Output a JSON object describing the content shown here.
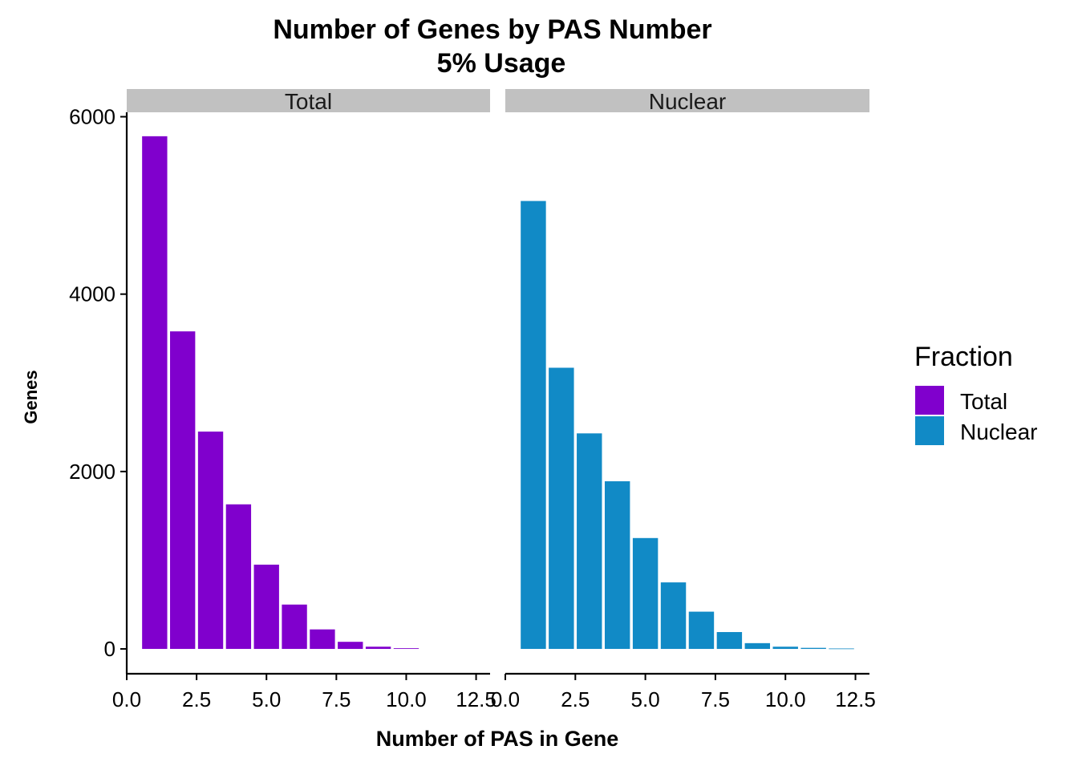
{
  "chart_data": {
    "type": "bar",
    "title": "Number of Genes by PAS Number\n5% Usage",
    "title_lines": [
      "Number of Genes by PAS Number",
      "5% Usage"
    ],
    "xlabel": "Number of PAS in Gene",
    "ylabel": "Genes",
    "xlim": [
      0,
      13
    ],
    "ylim": [
      -280,
      6050
    ],
    "x_ticks": [
      0,
      2.5,
      5,
      7.5,
      10,
      12.5
    ],
    "x_tick_labels": [
      "0.0",
      "2.5",
      "5.0",
      "7.5",
      "10.0",
      "12.5"
    ],
    "y_ticks": [
      0,
      2000,
      4000,
      6000
    ],
    "y_tick_labels": [
      "0",
      "2000",
      "4000",
      "6000"
    ],
    "grid": false,
    "legend_placement": "right",
    "legend_title": "Fraction",
    "bar_width": 0.9,
    "facets": [
      {
        "name": "Total",
        "color": "#8000cd",
        "x": [
          1,
          2,
          3,
          4,
          5,
          6,
          7,
          8,
          9,
          10
        ],
        "values": [
          5780,
          3580,
          2450,
          1630,
          950,
          500,
          220,
          80,
          25,
          8
        ]
      },
      {
        "name": "Nuclear",
        "color": "#118ac6",
        "x": [
          1,
          2,
          3,
          4,
          5,
          6,
          7,
          8,
          9,
          10,
          11,
          12
        ],
        "values": [
          5050,
          3170,
          2430,
          1890,
          1250,
          750,
          420,
          190,
          65,
          25,
          12,
          5
        ]
      }
    ]
  },
  "colors": {
    "strip_background": "#c1c1c1",
    "background": "#ffffff"
  }
}
